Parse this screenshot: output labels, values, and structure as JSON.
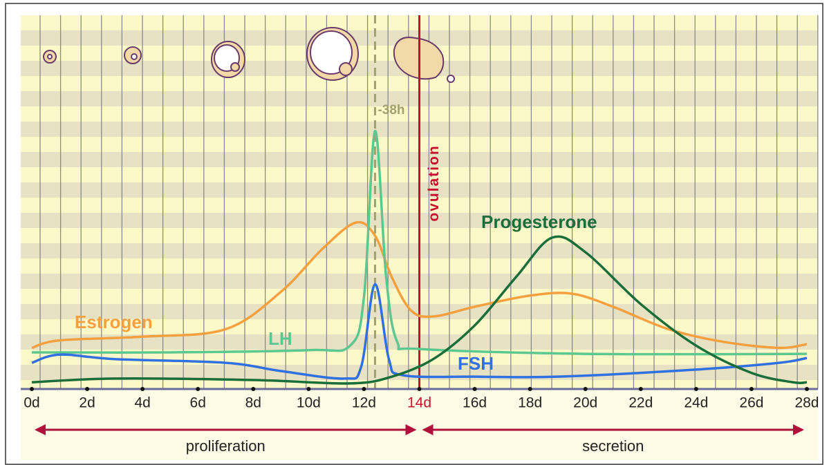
{
  "chart_data": {
    "type": "line",
    "xlim": [
      -0.4,
      28.4
    ],
    "ylim": [
      0,
      100
    ],
    "xticks": [
      {
        "value": 0,
        "label": "0d"
      },
      {
        "value": 2,
        "label": "2d"
      },
      {
        "value": 4,
        "label": "4d"
      },
      {
        "value": 6,
        "label": "6d"
      },
      {
        "value": 8,
        "label": "8d"
      },
      {
        "value": 10,
        "label": "10d"
      },
      {
        "value": 12,
        "label": "12d"
      },
      {
        "value": 14,
        "label": "14d"
      },
      {
        "value": 16,
        "label": "16d"
      },
      {
        "value": 18,
        "label": "18d"
      },
      {
        "value": 20,
        "label": "20d"
      },
      {
        "value": 22,
        "label": "22d"
      },
      {
        "value": 24,
        "label": "24d"
      },
      {
        "value": 26,
        "label": "26d"
      },
      {
        "value": 28,
        "label": "28d"
      }
    ],
    "series": [
      {
        "name": "Estrogen",
        "color": "#f5a040",
        "x": [
          0,
          1,
          4,
          7,
          9,
          10.5,
          11.7,
          12.4,
          13,
          13.7,
          14.5,
          16,
          18,
          19.5,
          21,
          23,
          25,
          27,
          28
        ],
        "values": [
          11,
          13,
          14,
          16,
          26,
          37.5,
          44.5,
          41,
          30,
          21,
          19.4,
          22,
          25,
          25.5,
          22,
          16,
          12.6,
          11,
          12
        ]
      },
      {
        "name": "LH",
        "color": "#5cc890",
        "x": [
          0,
          5,
          10,
          11.5,
          12,
          12.4,
          12.8,
          13.2,
          14,
          20,
          28
        ],
        "values": [
          9.8,
          9.8,
          10.4,
          11.6,
          24.6,
          69,
          30,
          12.6,
          10.7,
          9.4,
          9.4
        ]
      },
      {
        "name": "FSH",
        "color": "#3070e0",
        "x": [
          0,
          1,
          3,
          7,
          9,
          11.3,
          11.9,
          12.4,
          12.9,
          13.4,
          16,
          19,
          24,
          27,
          28
        ],
        "values": [
          7,
          9.2,
          8,
          7,
          4.8,
          2.8,
          6,
          28,
          8,
          3.7,
          3.3,
          3.3,
          5.2,
          7,
          8.3
        ]
      },
      {
        "name": "Progesterone",
        "color": "#1a6e3a",
        "x": [
          0,
          3,
          8,
          11.5,
          13,
          14.5,
          16,
          17.5,
          18.8,
          20,
          22,
          24,
          26,
          27.5,
          28
        ],
        "values": [
          1.8,
          2.8,
          2.4,
          1.5,
          3.3,
          8,
          17,
          30,
          40.5,
          36.6,
          22.7,
          11.6,
          4.3,
          1.8,
          1.8
        ]
      }
    ],
    "annotations": [
      {
        "label": "ovulation",
        "x": 14,
        "color": "#c8102e"
      },
      {
        "label": "-38h",
        "x": 12.4,
        "color": "#a0a070"
      }
    ],
    "phases": [
      {
        "label": "proliferation",
        "start": 0,
        "end": 14
      },
      {
        "label": "secretion",
        "start": 14,
        "end": 28
      }
    ]
  }
}
